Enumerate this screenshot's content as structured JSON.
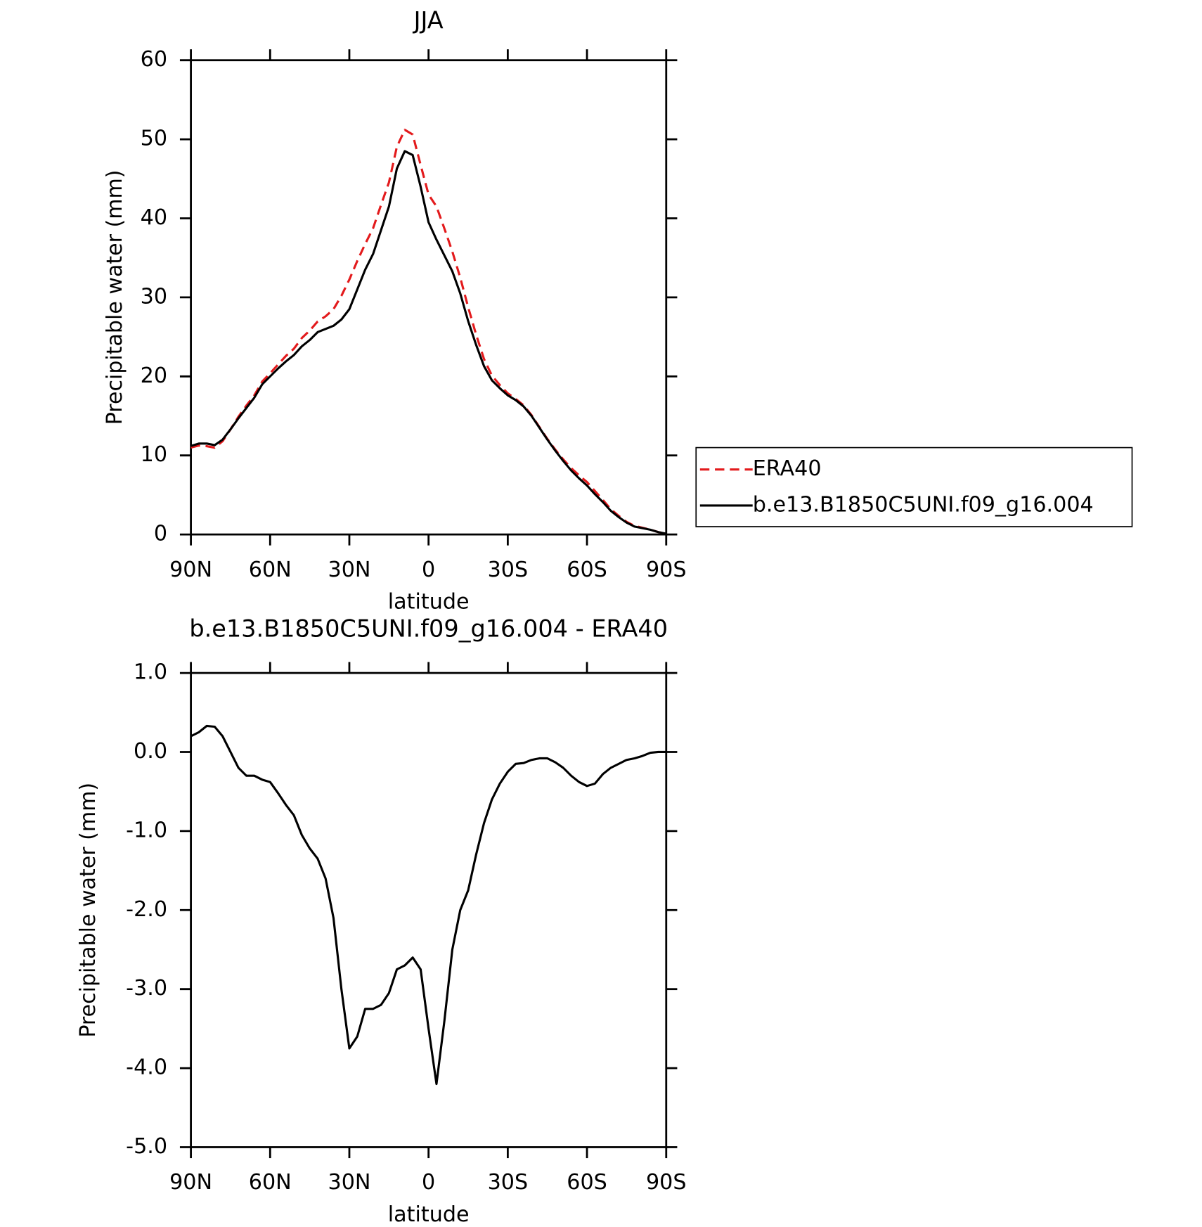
{
  "chart_data": [
    {
      "type": "line",
      "title": "JJA",
      "xlabel": "latitude",
      "ylabel": "Precipitable water (mm)",
      "x": [
        90,
        87,
        84,
        81,
        78,
        75,
        72,
        69,
        66,
        63,
        60,
        57,
        54,
        51,
        48,
        45,
        42,
        39,
        36,
        33,
        30,
        27,
        24,
        21,
        18,
        15,
        12,
        9,
        6,
        3,
        0,
        -3,
        -6,
        -9,
        -12,
        -15,
        -18,
        -21,
        -24,
        -27,
        -30,
        -33,
        -36,
        -39,
        -42,
        -45,
        -48,
        -51,
        -54,
        -57,
        -60,
        -63,
        -66,
        -69,
        -72,
        -75,
        -78,
        -81,
        -84,
        -87,
        -90
      ],
      "series": [
        {
          "name": "ERA40",
          "color": "#e31a1c",
          "linestyle": "dashed",
          "values": [
            11.0,
            11.25,
            11.17,
            10.98,
            11.8,
            13.3,
            14.9,
            16.3,
            17.6,
            19.35,
            20.4,
            21.5,
            22.6,
            23.5,
            24.85,
            25.8,
            26.95,
            27.6,
            28.5,
            30.2,
            32.25,
            34.6,
            36.75,
            38.75,
            41.7,
            44.55,
            49.05,
            51.2,
            50.6,
            46.75,
            43.0,
            41.5,
            38.7,
            35.8,
            32.5,
            28.75,
            25.3,
            22.2,
            20.1,
            18.9,
            17.85,
            17.15,
            16.34,
            15.1,
            13.58,
            12.08,
            10.73,
            9.5,
            8.4,
            7.48,
            6.63,
            5.5,
            4.38,
            3.2,
            2.35,
            1.6,
            1.08,
            0.85,
            0.61,
            0.3,
            0.1
          ]
        },
        {
          "name": "b.e13.B1850C5UNI.f09_g16.004",
          "color": "#000000",
          "linestyle": "solid",
          "values": [
            11.2,
            11.5,
            11.5,
            11.3,
            12.0,
            13.3,
            14.7,
            16.0,
            17.3,
            19.0,
            20.0,
            21.0,
            21.9,
            22.7,
            23.8,
            24.6,
            25.6,
            26.0,
            26.4,
            27.2,
            28.5,
            31.0,
            33.5,
            35.5,
            38.5,
            41.5,
            46.3,
            48.5,
            48.0,
            44.0,
            39.5,
            37.3,
            35.3,
            33.3,
            30.5,
            27.0,
            24.0,
            21.3,
            19.5,
            18.5,
            17.6,
            17.0,
            16.2,
            15.0,
            13.5,
            12.0,
            10.6,
            9.3,
            8.1,
            7.1,
            6.2,
            5.1,
            4.1,
            3.0,
            2.2,
            1.5,
            1.0,
            0.8,
            0.6,
            0.3,
            0.1
          ]
        }
      ],
      "xlim": [
        90,
        -90
      ],
      "xticks": [
        {
          "value": 90,
          "label": "90N"
        },
        {
          "value": 60,
          "label": "60N"
        },
        {
          "value": 30,
          "label": "30N"
        },
        0,
        {
          "value": -30,
          "label": "30S"
        },
        {
          "value": -60,
          "label": "60S"
        },
        {
          "value": -90,
          "label": "90S"
        }
      ],
      "ylim": [
        0,
        60
      ],
      "yticks": [
        0,
        10,
        20,
        30,
        40,
        50,
        60
      ],
      "legend": "right"
    },
    {
      "type": "line",
      "title": "b.e13.B1850C5UNI.f09_g16.004 - ERA40",
      "xlabel": "latitude",
      "ylabel": "Precipitable water (mm)",
      "x": [
        90,
        87,
        84,
        81,
        78,
        75,
        72,
        69,
        66,
        63,
        60,
        57,
        54,
        51,
        48,
        45,
        42,
        39,
        36,
        33,
        30,
        27,
        24,
        21,
        18,
        15,
        12,
        9,
        6,
        3,
        0,
        -3,
        -6,
        -9,
        -12,
        -15,
        -18,
        -21,
        -24,
        -27,
        -30,
        -33,
        -36,
        -39,
        -42,
        -45,
        -48,
        -51,
        -54,
        -57,
        -60,
        -63,
        -66,
        -69,
        -72,
        -75,
        -78,
        -81,
        -84,
        -87,
        -90
      ],
      "series": [
        {
          "color": "#000000",
          "linestyle": "solid",
          "values": [
            0.2,
            0.25,
            0.33,
            0.32,
            0.2,
            0.0,
            -0.2,
            -0.3,
            -0.3,
            -0.35,
            -0.38,
            -0.52,
            -0.67,
            -0.8,
            -1.05,
            -1.22,
            -1.35,
            -1.6,
            -2.1,
            -3.0,
            -3.75,
            -3.6,
            -3.25,
            -3.25,
            -3.2,
            -3.05,
            -2.75,
            -2.7,
            -2.6,
            -2.75,
            -3.5,
            -4.2,
            -3.4,
            -2.5,
            -2.0,
            -1.75,
            -1.3,
            -0.9,
            -0.6,
            -0.4,
            -0.25,
            -0.15,
            -0.14,
            -0.1,
            -0.08,
            -0.08,
            -0.13,
            -0.2,
            -0.3,
            -0.38,
            -0.43,
            -0.4,
            -0.28,
            -0.2,
            -0.15,
            -0.1,
            -0.08,
            -0.05,
            -0.01,
            0.0,
            0.0
          ]
        }
      ],
      "xlim": [
        90,
        -90
      ],
      "xticks": [
        {
          "value": 90,
          "label": "90N"
        },
        {
          "value": 60,
          "label": "60N"
        },
        {
          "value": 30,
          "label": "30N"
        },
        0,
        {
          "value": -30,
          "label": "30S"
        },
        {
          "value": -60,
          "label": "60S"
        },
        {
          "value": -90,
          "label": "90S"
        }
      ],
      "ylim": [
        -5,
        1
      ],
      "yticks": [
        {
          "value": -5,
          "label": "-5.0"
        },
        {
          "value": -4,
          "label": "-4.0"
        },
        {
          "value": -3,
          "label": "-3.0"
        },
        {
          "value": -2,
          "label": "-2.0"
        },
        {
          "value": -1,
          "label": "-1.0"
        },
        {
          "value": 0,
          "label": "0.0"
        },
        {
          "value": 1,
          "label": "1.0"
        }
      ]
    }
  ]
}
